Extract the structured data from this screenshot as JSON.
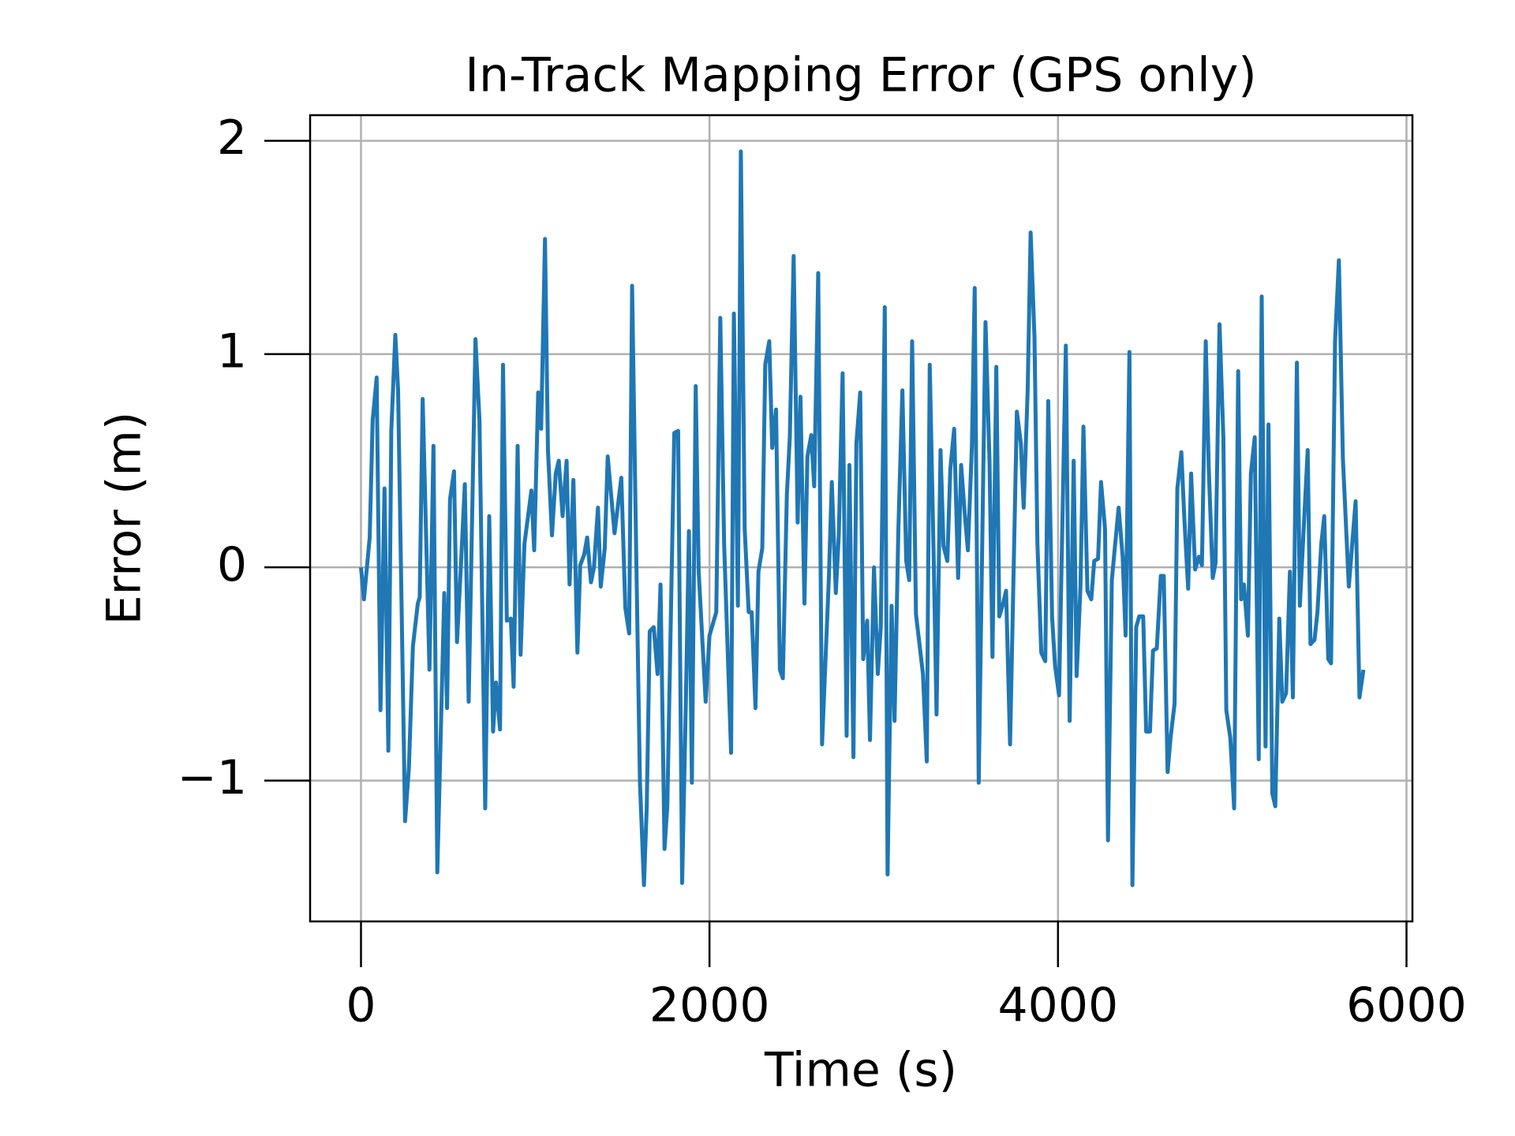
{
  "chart_data": {
    "type": "line",
    "title": "In-Track Mapping Error (GPS only)",
    "x_label": "Time (s)",
    "y_label": "Error (m)",
    "x": [
      0,
      17,
      50,
      67,
      90,
      112,
      135,
      157,
      174,
      197,
      213,
      253,
      275,
      298,
      326,
      337,
      354,
      393,
      416,
      438,
      478,
      494,
      511,
      534,
      551,
      573,
      596,
      618,
      657,
      680,
      713,
      736,
      758,
      775,
      798,
      815,
      837,
      860,
      876,
      899,
      916,
      938,
      978,
      994,
      1017,
      1034,
      1056,
      1073,
      1096,
      1118,
      1135,
      1157,
      1180,
      1197,
      1219,
      1242,
      1258,
      1281,
      1298,
      1320,
      1337,
      1360,
      1376,
      1399,
      1416,
      1455,
      1494,
      1517,
      1539,
      1556,
      1579,
      1601,
      1624,
      1640,
      1657,
      1680,
      1702,
      1719,
      1742,
      1758,
      1798,
      1820,
      1843,
      1865,
      1882,
      1899,
      1921,
      1938,
      1978,
      2000,
      2039,
      2062,
      2084,
      2124,
      2140,
      2163,
      2180,
      2202,
      2225,
      2242,
      2264,
      2281,
      2303,
      2320,
      2343,
      2360,
      2382,
      2404,
      2421,
      2444,
      2461,
      2483,
      2506,
      2522,
      2545,
      2562,
      2584,
      2601,
      2624,
      2646,
      2685,
      2702,
      2725,
      2742,
      2764,
      2787,
      2803,
      2826,
      2843,
      2865,
      2882,
      2905,
      2921,
      2944,
      2966,
      2983,
      3006,
      3022,
      3045,
      3062,
      3084,
      3107,
      3129,
      3146,
      3163,
      3185,
      3208,
      3225,
      3247,
      3264,
      3287,
      3303,
      3326,
      3343,
      3365,
      3382,
      3404,
      3427,
      3444,
      3466,
      3483,
      3506,
      3522,
      3545,
      3584,
      3607,
      3624,
      3646,
      3663,
      3685,
      3702,
      3725,
      3764,
      3787,
      3803,
      3826,
      3843,
      3865,
      3882,
      3904,
      3927,
      3944,
      3966,
      3983,
      4006,
      4045,
      4067,
      4090,
      4107,
      4129,
      4146,
      4169,
      4191,
      4208,
      4230,
      4247,
      4270,
      4287,
      4309,
      4326,
      4348,
      4371,
      4388,
      4410,
      4427,
      4449,
      4466,
      4489,
      4506,
      4528,
      4545,
      4567,
      4590,
      4607,
      4629,
      4646,
      4669,
      4685,
      4708,
      4725,
      4747,
      4764,
      4787,
      4809,
      4826,
      4848,
      4865,
      4888,
      4904,
      4927,
      4949,
      4966,
      4989,
      5011,
      5034,
      5051,
      5067,
      5090,
      5107,
      5129,
      5152,
      5169,
      5191,
      5208,
      5230,
      5247,
      5270,
      5287,
      5309,
      5331,
      5348,
      5371,
      5388,
      5410,
      5433,
      5449,
      5472,
      5489,
      5511,
      5528,
      5551,
      5567,
      5590,
      5612,
      5635,
      5669,
      5708,
      5730,
      5753
    ],
    "series": [
      {
        "color": "#1f77b4",
        "values": [
          0,
          -0.15,
          0.14,
          0.69,
          0.89,
          -0.67,
          0.37,
          -0.86,
          0.64,
          1.09,
          0.83,
          -1.19,
          -0.94,
          -0.37,
          -0.17,
          -0.14,
          0.79,
          -0.48,
          0.57,
          -1.43,
          -0.12,
          -0.66,
          0.32,
          0.45,
          -0.35,
          0,
          0.39,
          -0.63,
          1.07,
          0.69,
          -1.13,
          0.24,
          -0.77,
          -0.54,
          -0.76,
          0.95,
          -0.25,
          -0.24,
          -0.56,
          0.57,
          -0.41,
          0.11,
          0.36,
          0.08,
          0.82,
          0.65,
          1.54,
          0.55,
          0.15,
          0.44,
          0.5,
          0.24,
          0.5,
          -0.08,
          0.41,
          -0.4,
          0.01,
          0.06,
          0.14,
          -0.07,
          0,
          0.28,
          -0.09,
          0.09,
          0.52,
          0.16,
          0.42,
          -0.19,
          -0.31,
          1.32,
          0.09,
          -1.01,
          -1.49,
          -1.12,
          -0.3,
          -0.28,
          -0.5,
          -0.08,
          -1.32,
          -1.12,
          0.63,
          0.64,
          -1.48,
          -0.61,
          0.17,
          -1.01,
          0.85,
          -0.02,
          -0.63,
          -0.32,
          -0.21,
          1.17,
          0.11,
          -0.87,
          1.19,
          -0.18,
          1.95,
          0.18,
          -0.21,
          -0.21,
          -0.66,
          -0.02,
          0.09,
          0.95,
          1.06,
          0.56,
          0.74,
          -0.48,
          -0.52,
          0.34,
          0.61,
          1.46,
          0.21,
          0.8,
          -0.17,
          0.52,
          0.62,
          0.38,
          1.38,
          -0.83,
          -0.05,
          0.4,
          -0.12,
          0.15,
          0.91,
          -0.79,
          0.48,
          -0.89,
          0.58,
          0.82,
          -0.43,
          -0.25,
          -0.81,
          0,
          -0.5,
          -0.28,
          1.22,
          -1.44,
          -0.18,
          -0.72,
          0.18,
          0.83,
          0.03,
          -0.06,
          1.06,
          -0.22,
          -0.38,
          -0.5,
          -0.91,
          0.95,
          0.03,
          -0.69,
          0.55,
          0.1,
          0.03,
          0.46,
          0.65,
          -0.05,
          0.48,
          0.24,
          0.08,
          0.57,
          1.31,
          -1.01,
          1.15,
          0.5,
          -0.42,
          0.94,
          -0.23,
          -0.17,
          -0.11,
          -0.83,
          0.73,
          0.58,
          0.28,
          0.83,
          1.57,
          1.08,
          0.11,
          -0.4,
          -0.44,
          0.78,
          -0.23,
          -0.46,
          -0.6,
          1.04,
          -0.72,
          0.5,
          -0.51,
          -0.09,
          0.66,
          -0.11,
          -0.15,
          0.03,
          0.04,
          0.4,
          0.18,
          -1.28,
          -0.06,
          0.09,
          0.28,
          0.05,
          -0.32,
          1.01,
          -1.49,
          -0.28,
          -0.23,
          -0.23,
          -0.77,
          -0.77,
          -0.39,
          -0.38,
          -0.04,
          -0.04,
          -0.96,
          -0.8,
          -0.64,
          0.37,
          0.54,
          0.23,
          -0.1,
          0.44,
          -0.01,
          0.05,
          0.01,
          1.06,
          0.47,
          -0.05,
          0.02,
          1.14,
          0.61,
          -0.67,
          -0.8,
          -1.13,
          0.92,
          -0.15,
          -0.08,
          -0.32,
          0.44,
          0.61,
          -0.9,
          1.27,
          -0.84,
          0.67,
          -1.06,
          -1.12,
          -0.24,
          -0.63,
          -0.59,
          -0.02,
          -0.61,
          0.96,
          -0.18,
          0.18,
          0.55,
          -0.36,
          -0.34,
          -0.21,
          0.11,
          0.24,
          -0.43,
          -0.45,
          1.06,
          1.44,
          0.51,
          -0.09,
          0.31,
          -0.61,
          -0.48
        ]
      }
    ],
    "xlim": [
      -292,
      6034
    ],
    "ylim": [
      -1.66,
      2.12
    ],
    "xticks": [
      0,
      2000,
      4000,
      6000
    ],
    "yticks": [
      {
        "value": -1,
        "label": "−1"
      },
      0,
      1,
      2
    ],
    "grid": true
  }
}
